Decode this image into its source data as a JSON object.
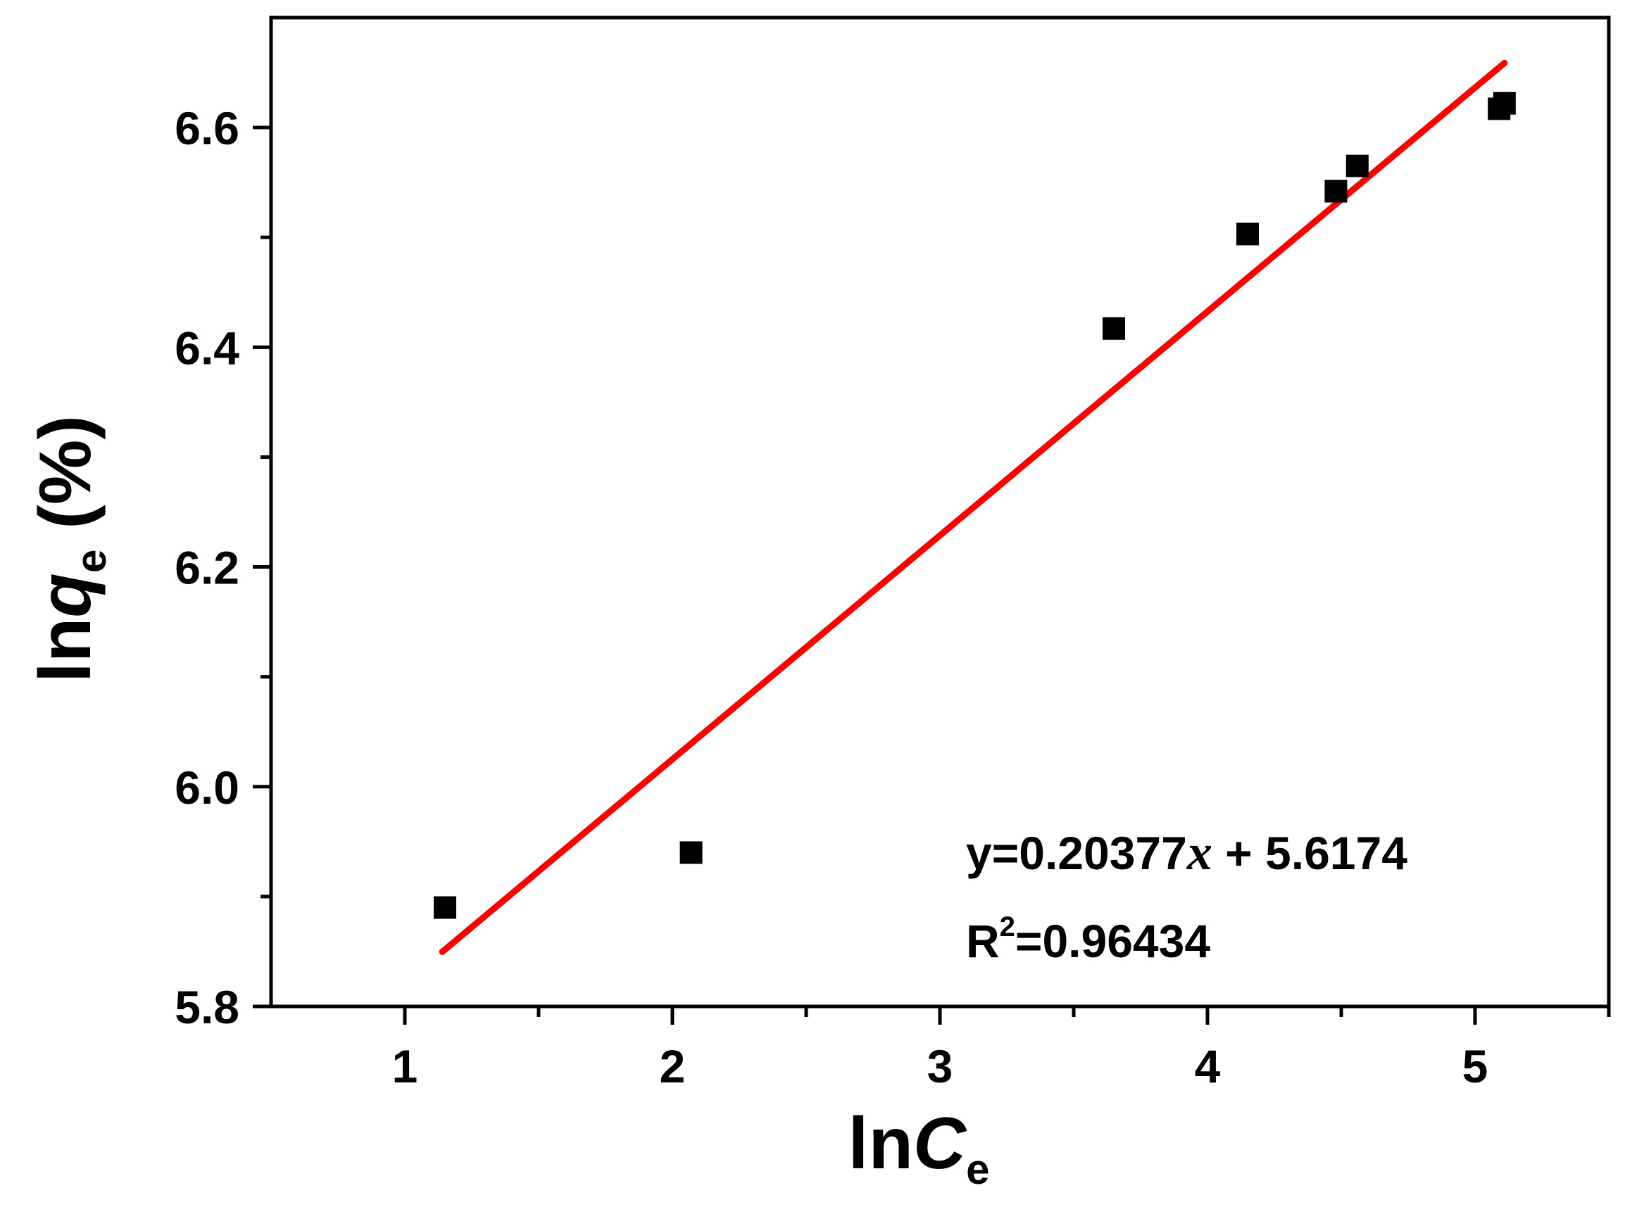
{
  "chart_data": {
    "type": "scatter",
    "xlabel": {
      "prefix": "ln",
      "var": "C",
      "sub": "e"
    },
    "ylabel": {
      "prefix": "ln",
      "var": "q",
      "sub": "e",
      "unit": " (%)"
    },
    "xlim": [
      0.5,
      5.5
    ],
    "ylim": [
      5.8,
      6.7
    ],
    "xticks": [
      1,
      2,
      3,
      4,
      5
    ],
    "xticks_minor": [
      1.5,
      2.5,
      3.5,
      4.5,
      5.5
    ],
    "yticks": [
      5.8,
      6.0,
      6.2,
      6.4,
      6.6
    ],
    "yticks_minor": [
      5.9,
      6.1,
      6.3,
      6.5
    ],
    "tick_labels": {
      "x": [
        "1",
        "2",
        "3",
        "4",
        "5"
      ],
      "y": [
        "5.8",
        "6.0",
        "6.2",
        "6.4",
        "6.6"
      ]
    },
    "grid": false,
    "legend": "none",
    "series": [
      {
        "marker": "square",
        "color": "#000000",
        "points": [
          {
            "x": 1.15,
            "y": 5.89
          },
          {
            "x": 2.07,
            "y": 5.94
          },
          {
            "x": 3.65,
            "y": 6.417
          },
          {
            "x": 4.15,
            "y": 6.503
          },
          {
            "x": 4.48,
            "y": 6.542
          },
          {
            "x": 4.56,
            "y": 6.565
          },
          {
            "x": 5.09,
            "y": 6.617
          },
          {
            "x": 5.11,
            "y": 6.622
          }
        ]
      }
    ],
    "fit": {
      "color": "#ff0000",
      "slope": 0.20377,
      "intercept": 5.6174,
      "x_range": [
        1.14,
        5.11
      ]
    },
    "annotations": {
      "equation": {
        "prefix": "y=0.20377",
        "var": "x",
        "suffix": " + 5.6174"
      },
      "r2": {
        "base": "R",
        "sup": "2",
        "value": "=0.96434"
      }
    }
  }
}
